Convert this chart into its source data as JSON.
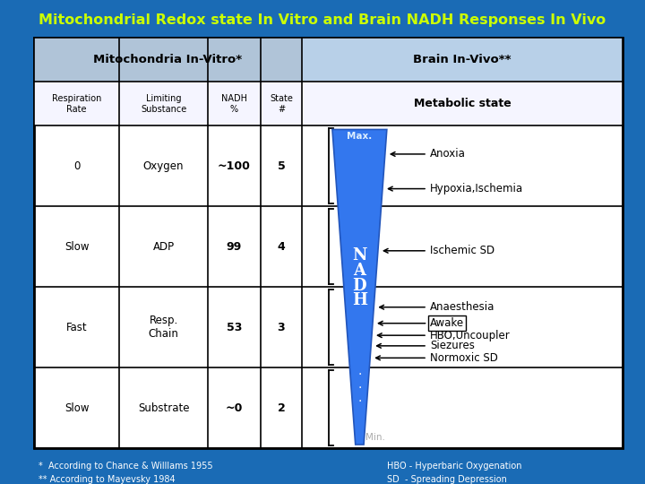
{
  "title": "Mitochondrial Redox state In Vitro and Brain NADH Responses In Vivo",
  "title_color": "#CCFF00",
  "bg_color": "#1A6BB5",
  "table_bg": "#FFFFFF",
  "header1": "Mitochondria In-Vitro*",
  "header2": "Brain In-Vivo**",
  "col_headers": [
    "Respiration\nRate",
    "Limiting\nSubstance",
    "NADH\n%",
    "State\n#",
    "Metabolic state"
  ],
  "rows": [
    [
      "0",
      "Oxygen",
      "~100",
      "5"
    ],
    [
      "Slow",
      "ADP",
      "99",
      "4"
    ],
    [
      "Fast",
      "Resp.\nChain",
      "53",
      "3"
    ],
    [
      "Slow",
      "Substrate",
      "~0",
      "2"
    ]
  ],
  "right_labels": [
    {
      "text": "Anoxia",
      "box": false
    },
    {
      "text": "Hypoxia,Ischemia",
      "box": false
    },
    {
      "text": "Ischemic SD",
      "box": false
    },
    {
      "text": "Anaesthesia",
      "box": false
    },
    {
      "text": "Awake",
      "box": true
    },
    {
      "text": "HBO,Uncoupler",
      "box": false
    },
    {
      "text": "Siezures",
      "box": false
    },
    {
      "text": "Normoxic SD",
      "box": false
    }
  ],
  "footnotes": [
    "*  According to Chance & Willlams 1955",
    "** According to Mayevsky 1984"
  ],
  "footnotes_right": [
    "HBO - Hyperbaric Oxygenation",
    "SD  - Spreading Depression"
  ],
  "triangle_color": "#4488EE",
  "max_label": "Max.",
  "min_label": "Min."
}
